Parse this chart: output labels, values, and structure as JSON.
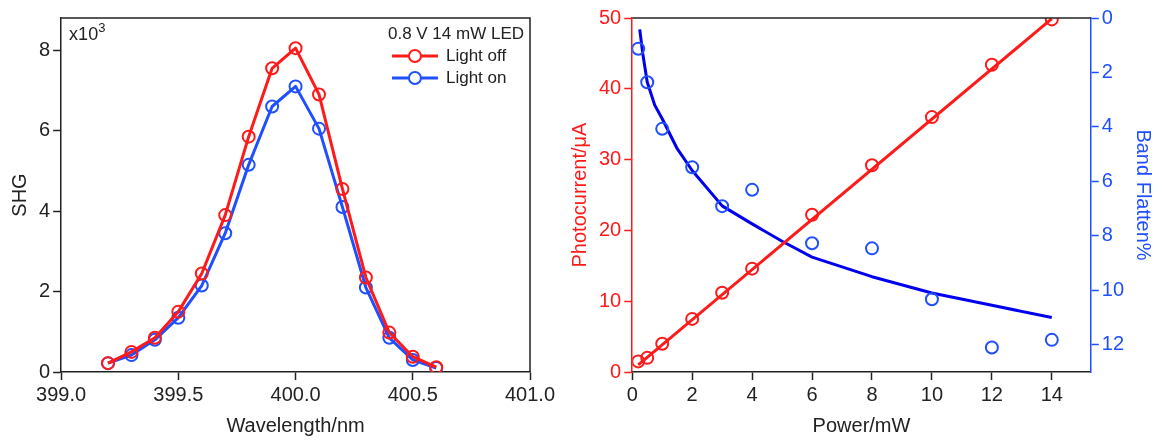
{
  "chart_data": [
    {
      "type": "line",
      "xlabel": "Wavelength/nm",
      "ylabel": "SHG",
      "legend_title": "0.8 V 14 mW LED",
      "legend": "top right",
      "grid": false,
      "marker": "circle",
      "line_style": "solid",
      "x": [
        399.2,
        399.3,
        399.4,
        399.5,
        399.6,
        399.7,
        399.8,
        399.9,
        400.0,
        400.1,
        400.2,
        400.3,
        400.4,
        400.5,
        400.6
      ],
      "series": [
        {
          "name": "Light off",
          "color": "#ff1a1a",
          "values": [
            0.22,
            0.5,
            0.85,
            1.5,
            2.45,
            3.9,
            5.85,
            7.55,
            8.05,
            6.9,
            4.55,
            2.35,
            0.98,
            0.38,
            0.12
          ]
        },
        {
          "name": "Light on",
          "color": "#1f4fff",
          "values": [
            0.22,
            0.42,
            0.8,
            1.35,
            2.15,
            3.45,
            5.15,
            6.6,
            7.1,
            6.05,
            4.1,
            2.1,
            0.85,
            0.3,
            0.1
          ]
        }
      ],
      "xlim": [
        399,
        401
      ],
      "xticks": [
        {
          "value": 399,
          "label": "399.0"
        },
        399.5,
        {
          "value": 400,
          "label": "400.0"
        },
        400.5,
        {
          "value": 401,
          "label": "401.0"
        }
      ],
      "ylim": [
        0,
        8.8
      ],
      "yticks": [
        0,
        2,
        4,
        6,
        8
      ],
      "annotations": [
        "x10$^{3}$"
      ]
    },
    {
      "type": "scatter",
      "xlabel": "Power/mW",
      "ylabel": "Photocurrent/μA",
      "y2label": "Band Flatten%",
      "legend": false,
      "grid": false,
      "marker": "circle",
      "x": [
        0.2,
        0.5,
        1,
        2,
        3,
        4,
        6,
        8,
        10,
        12,
        14
      ],
      "series": [
        {
          "color": "#ff1a1a",
          "values": [
            1.5,
            2,
            4,
            7.5,
            11.2,
            14.6,
            22.2,
            29.2,
            36,
            43.4,
            49.8
          ]
        },
        {
          "type": "line",
          "color": "#ff1a1a",
          "x": [
            0.2,
            14
          ],
          "values": [
            1.0,
            49.9
          ],
          "marker": "none",
          "line_style": "solid"
        },
        {
          "color": "#1f4fff",
          "axis": "y2",
          "values": [
            1.13,
            2.36,
            4.07,
            5.48,
            6.91,
            6.31,
            8.27,
            8.46,
            10.33,
            12.1,
            11.82
          ]
        },
        {
          "type": "line",
          "color": "#0000ee",
          "axis": "y2",
          "x": [
            0.25,
            0.35,
            0.5,
            0.75,
            1,
            1.5,
            2,
            3,
            4,
            5,
            6,
            8,
            10,
            12,
            14
          ],
          "values": [
            0.42,
            1.3,
            2.35,
            3.2,
            3.7,
            4.8,
            5.6,
            6.9,
            7.56,
            8.2,
            8.78,
            9.5,
            10.1,
            10.55,
            11.0
          ],
          "marker": "none",
          "line_style": "solid"
        }
      ],
      "xlim": [
        0,
        15.3
      ],
      "xticks": [
        0,
        2,
        4,
        6,
        8,
        10,
        12,
        14
      ],
      "ylim": [
        0,
        50
      ],
      "yticks": [
        0,
        10,
        20,
        30,
        40,
        50
      ],
      "y2lim": [
        13,
        0
      ],
      "y2ticks": [
        0,
        2,
        4,
        6,
        8,
        10,
        12
      ]
    }
  ]
}
